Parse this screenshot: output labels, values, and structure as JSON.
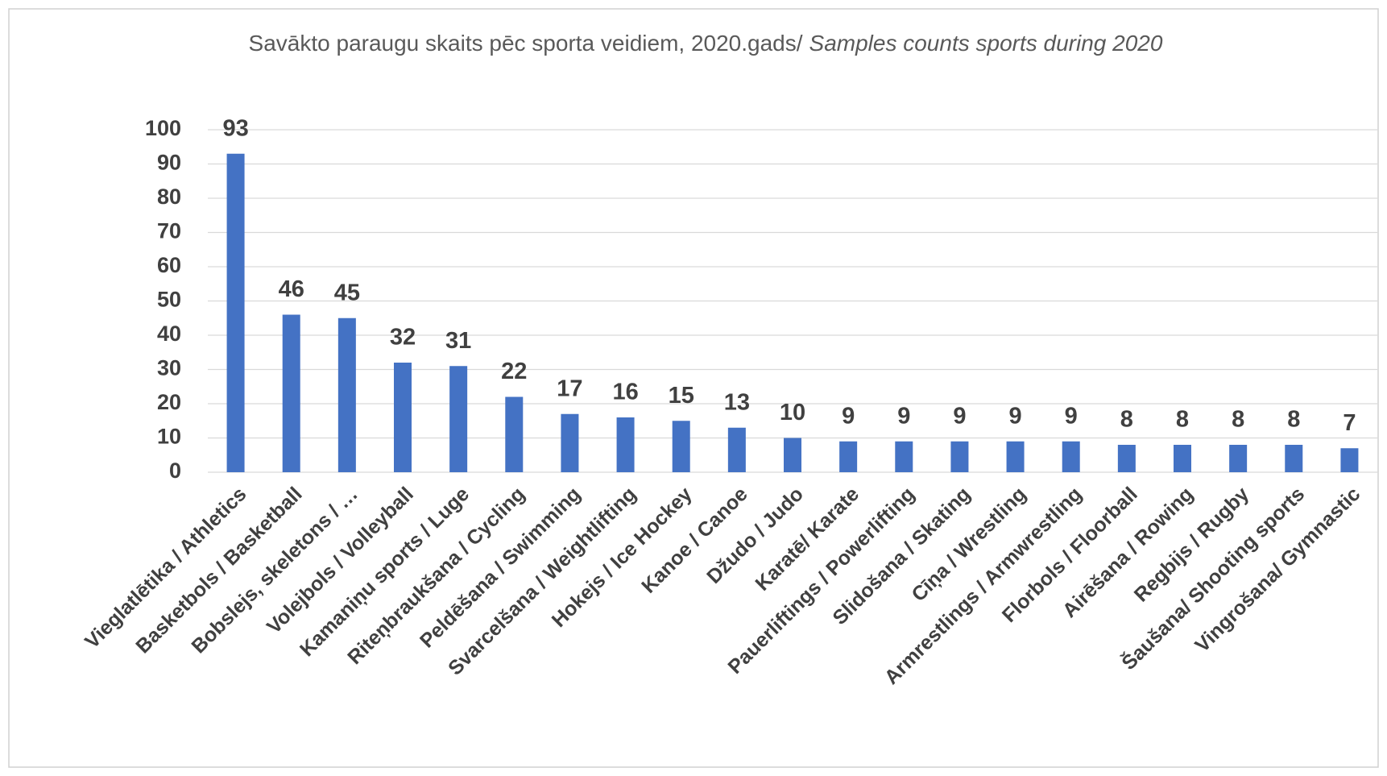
{
  "chart_data": {
    "type": "bar",
    "title": [
      "Savākto paraugu skaits pēc sporta veidiem, 2020.gads/",
      "Samples counts sports during 2020"
    ],
    "categories": [
      "Vieglatlētika / Athletics",
      "Basketbols / Basketball",
      "Bobslejs, skeletons / …",
      "Volejbols / Volleyball",
      "Kamaniņu sports / Luge",
      "Riteņbraukšana / Cycling",
      "Peldēšana / Swimming",
      "Svarcelšana / Weightlifting",
      "Hokejs / Ice Hockey",
      "Kanoe / Canoe",
      "Džudo / Judo",
      "Karatē/ Karate",
      "Pauerliftings / Powerlifting",
      "Slidošana / Skating",
      "Cīņa / Wrestling",
      "Armrestlings / Armwrestling",
      "Florbols / Floorball",
      "Airēšana / Rowing",
      "Regbijs / Rugby",
      "Šaušana/ Shooting sports",
      "Vingrošana/ Gymnastic"
    ],
    "values": [
      93,
      46,
      45,
      32,
      31,
      22,
      17,
      16,
      15,
      13,
      10,
      9,
      9,
      9,
      9,
      9,
      8,
      8,
      8,
      8,
      7
    ],
    "color": "#4472c4",
    "ylim": [
      0,
      100
    ],
    "yticks": [
      0,
      10,
      20,
      30,
      40,
      50,
      60,
      70,
      80,
      90,
      100
    ],
    "grid": true
  }
}
